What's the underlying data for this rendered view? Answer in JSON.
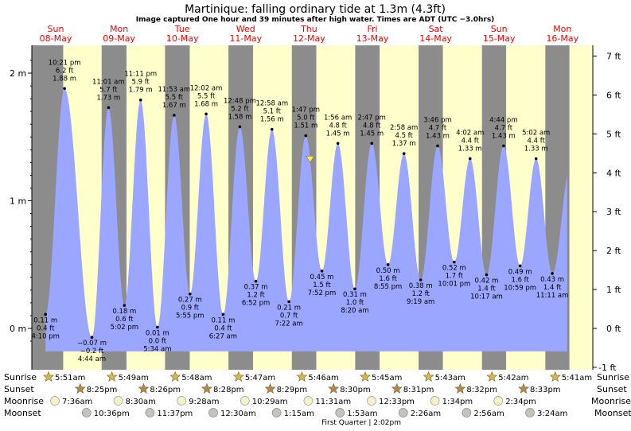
{
  "title": "Martinique: falling  ordinary tide at 1.3m (4.3ft)",
  "subtitle": "Image captured One hour and 39 minutes after high water. Times are ADT (UTC −3.0hrs)",
  "colors": {
    "night": "#8c8c8c",
    "day": "#ffffcc",
    "tide": "#9aa6ff",
    "day_label": "#ee0000",
    "marker": "#ffee44"
  },
  "days": [
    {
      "dow": "Sun",
      "date": "08-May"
    },
    {
      "dow": "Mon",
      "date": "09-May"
    },
    {
      "dow": "Tue",
      "date": "10-May"
    },
    {
      "dow": "Wed",
      "date": "11-May"
    },
    {
      "dow": "Thu",
      "date": "12-May"
    },
    {
      "dow": "Fri",
      "date": "13-May"
    },
    {
      "dow": "Sat",
      "date": "14-May"
    },
    {
      "dow": "Sun",
      "date": "15-May"
    },
    {
      "dow": "Mon",
      "date": "16-May"
    }
  ],
  "chart_data": {
    "type": "area",
    "title": "Martinique: falling  ordinary tide at 1.3m (4.3ft)",
    "x_range_days": [
      -0.25,
      8.5
    ],
    "y_left": {
      "unit": "m",
      "range": [
        -0.2,
        2.2
      ],
      "ticks": [
        {
          "v": 0,
          "label": "0 m"
        },
        {
          "v": 1,
          "label": "1 m"
        },
        {
          "v": 2,
          "label": "2 m"
        }
      ]
    },
    "y_right": {
      "unit": "ft",
      "ticks": [
        "-1 ft",
        "0 ft",
        "1 ft",
        "2 ft",
        "3 ft",
        "4 ft",
        "5 ft",
        "6 ft",
        "7 ft"
      ],
      "ticks_ft": [
        -1,
        0,
        1,
        2,
        3,
        4,
        5,
        6,
        7
      ]
    },
    "extremes": [
      {
        "day": -0.035,
        "m": 0.11,
        "lines": [
          "0.11 m",
          "0.4 ft",
          "4:10 pm"
        ]
      },
      {
        "day": 0.265,
        "m": 1.88,
        "lines": [
          "10:21 pm",
          "6.2 ft",
          "1.88 m"
        ]
      },
      {
        "day": 0.697,
        "m": -0.07,
        "lines": [
          "−0.07 m",
          "−0.2 ft",
          "4:44 am"
        ]
      },
      {
        "day": 0.959,
        "m": 1.73,
        "lines": [
          "11:01 am",
          "5.7 ft",
          "1.73 m"
        ]
      },
      {
        "day": 1.21,
        "m": 0.18,
        "lines": [
          "0.18 m",
          "0.6 ft",
          "5:02 pm"
        ]
      },
      {
        "day": 1.466,
        "m": 1.79,
        "lines": [
          "11:11 pm",
          "5.9 ft",
          "1.79 m"
        ]
      },
      {
        "day": 1.732,
        "m": 0.01,
        "lines": [
          "0.01 m",
          "0.0 ft",
          "5:34 am"
        ]
      },
      {
        "day": 1.995,
        "m": 1.67,
        "lines": [
          "11:53 am",
          "5.5 ft",
          "1.67 m"
        ]
      },
      {
        "day": 2.246,
        "m": 0.27,
        "lines": [
          "0.27 m",
          "0.9 ft",
          "5:55 pm"
        ]
      },
      {
        "day": 2.501,
        "m": 1.68,
        "lines": [
          "12:02 am",
          "5.5 ft",
          "1.68 m"
        ]
      },
      {
        "day": 2.769,
        "m": 0.11,
        "lines": [
          "0.11 m",
          "0.4 ft",
          "6:27 am"
        ]
      },
      {
        "day": 3.033,
        "m": 1.58,
        "lines": [
          "12:48 pm",
          "5.2 ft",
          "1.58 m"
        ]
      },
      {
        "day": 3.286,
        "m": 0.37,
        "lines": [
          "0.37 m",
          "1.2 ft",
          "6:52 pm"
        ]
      },
      {
        "day": 3.54,
        "m": 1.56,
        "lines": [
          "12:58 am",
          "5.1 ft",
          "1.56 m"
        ]
      },
      {
        "day": 3.808,
        "m": 0.21,
        "lines": [
          "0.21 m",
          "0.7 ft",
          "7:22 am"
        ]
      },
      {
        "day": 4.074,
        "m": 1.51,
        "lines": [
          "1:47 pm",
          "5.0 ft",
          "1.51 m"
        ]
      },
      {
        "day": 4.328,
        "m": 0.45,
        "lines": [
          "0.45 m",
          "1.5 ft",
          "7:52 pm"
        ]
      },
      {
        "day": 4.581,
        "m": 1.45,
        "lines": [
          "1:56 am",
          "4.8 ft",
          "1.45 m"
        ]
      },
      {
        "day": 4.849,
        "m": 0.31,
        "lines": [
          "0.31 m",
          "1.0 ft",
          "8:20 am"
        ]
      },
      {
        "day": 5.116,
        "m": 1.45,
        "lines": [
          "2:47 pm",
          "4.8 ft",
          "1.45 m"
        ]
      },
      {
        "day": 5.372,
        "m": 0.5,
        "lines": [
          "0.50 m",
          "1.6 ft",
          "8:55 pm"
        ]
      },
      {
        "day": 5.624,
        "m": 1.37,
        "lines": [
          "2:58 am",
          "4.5 ft",
          "1.37 m"
        ]
      },
      {
        "day": 5.888,
        "m": 0.38,
        "lines": [
          "0.38 m",
          "1.2 ft",
          "9:19 am"
        ]
      },
      {
        "day": 6.156,
        "m": 1.43,
        "lines": [
          "3:46 pm",
          "4.7 ft",
          "1.43 m"
        ]
      },
      {
        "day": 6.418,
        "m": 0.52,
        "lines": [
          "0.52 m",
          "1.7 ft",
          "10:01 pm"
        ]
      },
      {
        "day": 6.668,
        "m": 1.33,
        "lines": [
          "4:02 am",
          "4.4 ft",
          "1.33 m"
        ]
      },
      {
        "day": 6.928,
        "m": 0.42,
        "lines": [
          "0.42 m",
          "1.4 ft",
          "10:17 am"
        ]
      },
      {
        "day": 7.197,
        "m": 1.43,
        "lines": [
          "4:44 pm",
          "4.7 ft",
          "1.43 m"
        ]
      },
      {
        "day": 7.458,
        "m": 0.49,
        "lines": [
          "0.49 m",
          "1.6 ft",
          "10:59 pm"
        ]
      },
      {
        "day": 7.71,
        "m": 1.33,
        "lines": [
          "5:02 am",
          "4.4 ft",
          "1.33 m"
        ]
      },
      {
        "day": 7.966,
        "m": 0.43,
        "lines": [
          "0.43 m",
          "1.4 ft",
          "11:11 am"
        ]
      }
    ],
    "end": {
      "day": 8.2,
      "m": 1.2
    },
    "current": {
      "day": 4.143,
      "m": 1.3
    },
    "sunrise_days": [
      0.244,
      1.243,
      2.242,
      3.241,
      4.24,
      5.24,
      6.238,
      7.237,
      8.236
    ],
    "sunset_days": [
      -0.132,
      0.851,
      1.852,
      2.853,
      3.854,
      4.854,
      5.855,
      6.856,
      7.856
    ]
  },
  "legend_labels": {
    "sunrise": "Sunrise",
    "sunset": "Sunset",
    "moonrise": "Moonrise",
    "moonset": "Moonset"
  },
  "astro": {
    "sunrise": [
      {
        "day": 0,
        "t": "5:51am"
      },
      {
        "day": 1,
        "t": "5:49am"
      },
      {
        "day": 2,
        "t": "5:48am"
      },
      {
        "day": 3,
        "t": "5:47am"
      },
      {
        "day": 4,
        "t": "5:46am"
      },
      {
        "day": 5,
        "t": "5:45am"
      },
      {
        "day": 6,
        "t": "5:43am"
      },
      {
        "day": 7,
        "t": "5:42am"
      },
      {
        "day": 8,
        "t": "5:41am"
      }
    ],
    "sunset": [
      {
        "day": 0.5,
        "t": "8:25pm"
      },
      {
        "day": 1.5,
        "t": "8:26pm"
      },
      {
        "day": 2.5,
        "t": "8:28pm"
      },
      {
        "day": 3.5,
        "t": "8:29pm"
      },
      {
        "day": 4.5,
        "t": "8:30pm"
      },
      {
        "day": 5.5,
        "t": "8:31pm"
      },
      {
        "day": 6.5,
        "t": "8:32pm"
      },
      {
        "day": 7.5,
        "t": "8:33pm"
      }
    ],
    "moonrise": [
      {
        "day": 0,
        "t": "7:36am"
      },
      {
        "day": 1,
        "t": "8:30am"
      },
      {
        "day": 2,
        "t": "9:28am"
      },
      {
        "day": 3,
        "t": "10:29am"
      },
      {
        "day": 4,
        "t": "11:31am"
      },
      {
        "day": 5,
        "t": "12:33pm"
      },
      {
        "day": 6,
        "t": "1:34pm"
      },
      {
        "day": 7,
        "t": "2:34pm"
      }
    ],
    "moonset": [
      {
        "day": 0.5,
        "t": "10:36pm"
      },
      {
        "day": 1.5,
        "t": "11:37pm"
      },
      {
        "day": 2.5,
        "t": "12:30am"
      },
      {
        "day": 3.5,
        "t": "1:15am"
      },
      {
        "day": 4.5,
        "t": "1:53am"
      },
      {
        "day": 5.5,
        "t": "2:26am"
      },
      {
        "day": 6.5,
        "t": "2:56am"
      },
      {
        "day": 7.5,
        "t": "3:24am"
      }
    ],
    "moon_phase": "First Quarter | 2:02pm"
  }
}
